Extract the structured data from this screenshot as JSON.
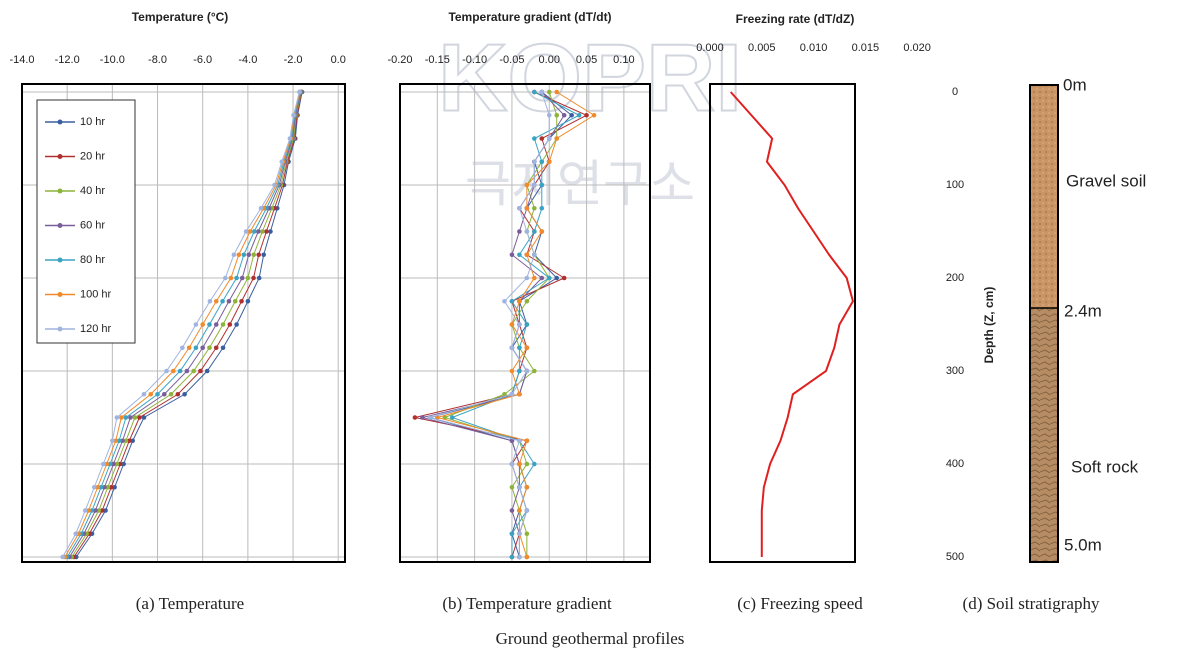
{
  "chart_data": [
    {
      "type": "line",
      "title": "Temperature (°C)",
      "y": [
        0,
        25,
        50,
        75,
        100,
        125,
        150,
        175,
        200,
        225,
        250,
        275,
        300,
        325,
        350,
        375,
        400,
        425,
        450,
        475,
        500
      ],
      "ylim": [
        0,
        500
      ],
      "yticks": [
        0,
        100,
        200,
        300,
        400,
        500
      ],
      "xlim": [
        -14,
        0.3
      ],
      "xticks": [
        {
          "value": -14,
          "label": "-14.0"
        },
        {
          "value": -12,
          "label": "-12.0"
        },
        {
          "value": -10,
          "label": "-10.0"
        },
        {
          "value": -8,
          "label": "-8.0"
        },
        {
          "value": -6,
          "label": "-6.0"
        },
        {
          "value": -4,
          "label": "-4.0"
        },
        {
          "value": -2,
          "label": "-2.0"
        },
        {
          "value": 0,
          "label": "0.0"
        }
      ],
      "grid": true,
      "markers": true,
      "legend": "upper left",
      "series": [
        {
          "name": "10 hr",
          "color": "#3a5fa0",
          "values": [
            -1.6,
            -1.8,
            -1.9,
            -2.2,
            -2.4,
            -2.7,
            -3.0,
            -3.3,
            -3.5,
            -4.0,
            -4.5,
            -5.1,
            -5.8,
            -6.8,
            -8.6,
            -9.1,
            -9.5,
            -9.9,
            -10.3,
            -10.9,
            -11.6
          ]
        },
        {
          "name": "20 hr",
          "color": "#b03030",
          "values": [
            -1.62,
            -1.83,
            -1.94,
            -2.25,
            -2.47,
            -2.82,
            -3.18,
            -3.52,
            -3.75,
            -4.28,
            -4.8,
            -5.4,
            -6.1,
            -7.1,
            -8.8,
            -9.25,
            -9.65,
            -10.05,
            -10.45,
            -11.02,
            -11.7
          ]
        },
        {
          "name": "40 hr",
          "color": "#8db33a",
          "values": [
            -1.64,
            -1.86,
            -1.98,
            -2.3,
            -2.54,
            -2.94,
            -3.36,
            -3.74,
            -4.0,
            -4.56,
            -5.1,
            -5.7,
            -6.4,
            -7.4,
            -9.0,
            -9.4,
            -9.8,
            -10.2,
            -10.6,
            -11.14,
            -11.8
          ]
        },
        {
          "name": "60 hr",
          "color": "#7a5e9a",
          "values": [
            -1.66,
            -1.89,
            -2.02,
            -2.35,
            -2.61,
            -3.06,
            -3.54,
            -3.96,
            -4.25,
            -4.84,
            -5.4,
            -6.0,
            -6.7,
            -7.7,
            -9.2,
            -9.55,
            -9.95,
            -10.35,
            -10.75,
            -11.26,
            -11.9
          ]
        },
        {
          "name": "80 hr",
          "color": "#3aa3c3",
          "values": [
            -1.68,
            -1.92,
            -2.06,
            -2.4,
            -2.68,
            -3.18,
            -3.72,
            -4.18,
            -4.5,
            -5.12,
            -5.7,
            -6.3,
            -7.0,
            -8.0,
            -9.4,
            -9.7,
            -10.1,
            -10.5,
            -10.9,
            -11.38,
            -12.0
          ]
        },
        {
          "name": "100 hr",
          "color": "#f08a2a",
          "values": [
            -1.7,
            -1.95,
            -2.1,
            -2.45,
            -2.75,
            -3.3,
            -3.9,
            -4.4,
            -4.75,
            -5.4,
            -6.0,
            -6.6,
            -7.3,
            -8.3,
            -9.6,
            -9.85,
            -10.25,
            -10.65,
            -11.05,
            -11.5,
            -12.1
          ]
        },
        {
          "name": "120 hr",
          "color": "#9fb4e0",
          "values": [
            -1.72,
            -1.98,
            -2.14,
            -2.5,
            -2.82,
            -3.42,
            -4.08,
            -4.62,
            -5.0,
            -5.68,
            -6.3,
            -6.9,
            -7.6,
            -8.6,
            -9.8,
            -10.0,
            -10.4,
            -10.8,
            -11.2,
            -11.62,
            -12.2
          ]
        }
      ]
    },
    {
      "type": "line",
      "title": "Temperature gradient (dT/dt)",
      "y": [
        0,
        25,
        50,
        75,
        100,
        125,
        150,
        175,
        200,
        225,
        250,
        275,
        300,
        325,
        350,
        375,
        400,
        425,
        450,
        475,
        500
      ],
      "ylim": [
        0,
        500
      ],
      "yticks": [
        0,
        100,
        200,
        300,
        400,
        500
      ],
      "xlim": [
        -0.2,
        0.135
      ],
      "xticks": [
        {
          "value": -0.2,
          "label": "-0.20"
        },
        -0.15,
        {
          "value": -0.1,
          "label": "-0.10"
        },
        -0.05,
        {
          "value": 0,
          "label": "0.00"
        },
        0.05,
        {
          "value": 0.1,
          "label": "0.10"
        }
      ],
      "grid": true,
      "markers": true,
      "series": [
        {
          "color": "#3a5fa0",
          "values": [
            -0.01,
            0.03,
            0.0,
            -0.02,
            -0.01,
            -0.03,
            -0.01,
            -0.02,
            0.01,
            -0.04,
            -0.03,
            -0.05,
            -0.03,
            -0.04,
            -0.16,
            -0.05,
            -0.04,
            -0.03,
            -0.04,
            -0.05,
            -0.04
          ]
        },
        {
          "color": "#b03030",
          "values": [
            -0.02,
            0.05,
            -0.01,
            0.0,
            -0.02,
            -0.04,
            -0.02,
            -0.03,
            0.02,
            -0.05,
            -0.04,
            -0.03,
            -0.04,
            -0.05,
            -0.18,
            -0.03,
            -0.05,
            -0.04,
            -0.03,
            -0.04,
            -0.05
          ]
        },
        {
          "color": "#8db33a",
          "values": [
            0.0,
            0.01,
            0.01,
            -0.01,
            -0.03,
            -0.02,
            -0.03,
            -0.02,
            0.0,
            -0.03,
            -0.05,
            -0.04,
            -0.02,
            -0.06,
            -0.14,
            -0.04,
            -0.03,
            -0.05,
            -0.04,
            -0.03,
            -0.03
          ]
        },
        {
          "color": "#7a5e9a",
          "values": [
            -0.01,
            0.02,
            0.0,
            -0.02,
            -0.02,
            -0.03,
            -0.04,
            -0.05,
            -0.01,
            -0.04,
            -0.04,
            -0.05,
            -0.03,
            -0.04,
            -0.17,
            -0.05,
            -0.04,
            -0.04,
            -0.05,
            -0.04,
            -0.04
          ]
        },
        {
          "color": "#3aa3c3",
          "values": [
            -0.02,
            0.04,
            -0.02,
            -0.01,
            -0.01,
            -0.01,
            -0.02,
            -0.04,
            0.0,
            -0.05,
            -0.03,
            -0.04,
            -0.04,
            -0.05,
            -0.13,
            -0.04,
            -0.02,
            -0.04,
            -0.03,
            -0.05,
            -0.05
          ]
        },
        {
          "color": "#f08a2a",
          "values": [
            0.01,
            0.06,
            0.01,
            0.0,
            -0.03,
            -0.03,
            -0.01,
            -0.03,
            -0.02,
            -0.04,
            -0.05,
            -0.03,
            -0.05,
            -0.04,
            -0.15,
            -0.03,
            -0.04,
            -0.03,
            -0.04,
            -0.04,
            -0.03
          ]
        },
        {
          "color": "#9fb4e0",
          "values": [
            -0.01,
            0.0,
            0.0,
            -0.02,
            -0.02,
            -0.04,
            -0.03,
            -0.02,
            -0.03,
            -0.06,
            -0.04,
            -0.05,
            -0.03,
            -0.05,
            -0.16,
            -0.04,
            -0.05,
            -0.04,
            -0.03,
            -0.04,
            -0.04
          ]
        }
      ]
    },
    {
      "type": "line",
      "title": "Freezing rate (dT/dZ)",
      "y": [
        0,
        25,
        50,
        75,
        100,
        125,
        150,
        175,
        200,
        225,
        250,
        275,
        300,
        325,
        350,
        375,
        400,
        425,
        450,
        475,
        500
      ],
      "ylim": [
        0,
        500
      ],
      "yticks": [
        0,
        100,
        200,
        300,
        400,
        500
      ],
      "yaxis": "right",
      "ylabel": "Depth (Z, cm)",
      "xlim": [
        0,
        0.014
      ],
      "xticks": [
        {
          "value": 0,
          "label": "0.000"
        },
        0.005,
        {
          "value": 0.01,
          "label": "0.010"
        },
        0.015,
        {
          "value": 0.02,
          "label": "0.020"
        }
      ],
      "grid": false,
      "markers": false,
      "series": [
        {
          "color": "#e02020",
          "values": [
            0.002,
            0.004,
            0.006,
            0.0055,
            0.0072,
            0.0085,
            0.01,
            0.0115,
            0.0132,
            0.0138,
            0.0125,
            0.012,
            0.0112,
            0.008,
            0.0075,
            0.0068,
            0.0058,
            0.0052,
            0.005,
            0.005,
            0.005
          ]
        }
      ]
    }
  ],
  "stratigraphy": {
    "top": "0m",
    "layer1": "Gravel soil",
    "boundary": "2.4m",
    "layer2": "Soft rock",
    "bottom": "5.0m"
  },
  "captions": [
    "(a) Temperature",
    "(b) Temperature gradient",
    "(c) Freezing speed",
    "(d) Soil stratigraphy"
  ],
  "figure_caption": "Ground geothermal profiles",
  "watermark": {
    "logo": "KOPRI",
    "name": "극지연구소"
  }
}
